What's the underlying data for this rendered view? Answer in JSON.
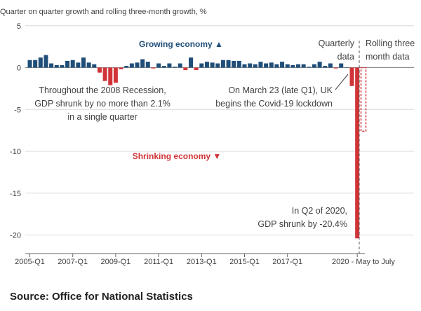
{
  "chart_data": {
    "type": "bar",
    "title": "Quarter on quarter growth and rolling three-month growth, %",
    "ylim": [
      -21,
      5
    ],
    "yticks": [
      5,
      0,
      -5,
      -10,
      -15,
      -20
    ],
    "xtick_labels": [
      "2005-Q1",
      "2007-Q1",
      "2009-Q1",
      "2011-Q1",
      "2013-Q1",
      "2015-Q1",
      "2017-Q1"
    ],
    "xtick_indices": [
      0,
      8,
      16,
      24,
      32,
      40,
      48
    ],
    "last_xtick_label": "2020 - May to July",
    "quarters": [
      "2005-Q1",
      "2005-Q2",
      "2005-Q3",
      "2005-Q4",
      "2006-Q1",
      "2006-Q2",
      "2006-Q3",
      "2006-Q4",
      "2007-Q1",
      "2007-Q2",
      "2007-Q3",
      "2007-Q4",
      "2008-Q1",
      "2008-Q2",
      "2008-Q3",
      "2008-Q4",
      "2009-Q1",
      "2009-Q2",
      "2009-Q3",
      "2009-Q4",
      "2010-Q1",
      "2010-Q2",
      "2010-Q3",
      "2010-Q4",
      "2011-Q1",
      "2011-Q2",
      "2011-Q3",
      "2011-Q4",
      "2012-Q1",
      "2012-Q2",
      "2012-Q3",
      "2012-Q4",
      "2013-Q1",
      "2013-Q2",
      "2013-Q3",
      "2013-Q4",
      "2014-Q1",
      "2014-Q2",
      "2014-Q3",
      "2014-Q4",
      "2015-Q1",
      "2015-Q2",
      "2015-Q3",
      "2015-Q4",
      "2016-Q1",
      "2016-Q2",
      "2016-Q3",
      "2016-Q4",
      "2017-Q1",
      "2017-Q2",
      "2017-Q3",
      "2017-Q4",
      "2018-Q1",
      "2018-Q2",
      "2018-Q3",
      "2018-Q4",
      "2019-Q1",
      "2019-Q2",
      "2019-Q3",
      "2019-Q4",
      "2020-Q1",
      "2020-Q2"
    ],
    "quarterly_values": [
      0.9,
      0.9,
      1.2,
      1.5,
      0.5,
      0.3,
      0.3,
      0.8,
      0.9,
      0.6,
      1.2,
      0.6,
      0.4,
      -0.6,
      -1.6,
      -2.1,
      -1.8,
      -0.2,
      0.2,
      0.5,
      0.6,
      1.0,
      0.7,
      -0.1,
      0.5,
      0.2,
      0.5,
      0.1,
      0.5,
      -0.3,
      1.2,
      -0.3,
      0.5,
      0.7,
      0.6,
      0.5,
      0.9,
      0.9,
      0.8,
      0.8,
      0.4,
      0.5,
      0.4,
      0.7,
      0.5,
      0.6,
      0.4,
      0.7,
      0.4,
      0.3,
      0.4,
      0.4,
      0.1,
      0.4,
      0.7,
      0.2,
      0.5,
      -0.1,
      0.5,
      0.0,
      -2.2,
      -20.4
    ],
    "rolling_label": "2020 - May to July",
    "rolling_value": -7.6,
    "colors": {
      "growth": "#1f4e79",
      "decline": "#d13438",
      "axis": "#666666",
      "grid": "#d9d9d9",
      "text": "#404040"
    }
  },
  "annotations": {
    "growing": "Growing economy ▲",
    "shrinking": "Shrinking economy ▼",
    "recession": [
      "Throughout the 2008 Recession,",
      "GDP shrunk by no more than 2.1%",
      "in a single quarter"
    ],
    "covid": [
      "On March 23 (late Q1), UK",
      "begins the Covid-19 lockdown"
    ],
    "q2": [
      "In Q2 of 2020,",
      "GDP shrunk by -20.4%"
    ],
    "quarterly": [
      "Quarterly",
      "data"
    ],
    "rolling": [
      "Rolling three",
      "month data"
    ]
  },
  "source": "Source: Office for National Statistics"
}
